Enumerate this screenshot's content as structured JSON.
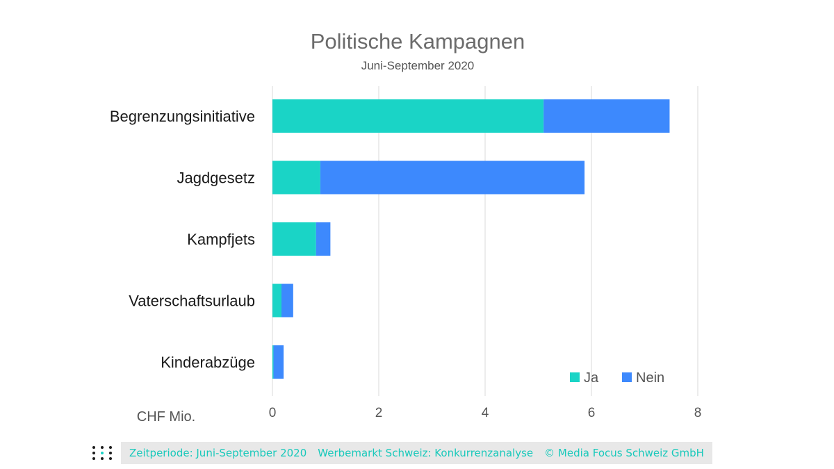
{
  "chart_data": {
    "type": "bar",
    "orientation": "horizontal",
    "stacked": true,
    "title": "Politische Kampagnen",
    "subtitle": "Juni-September 2020",
    "categories": [
      "Begrenzungsinitiative",
      "Jagdgesetz",
      "Kampfjets",
      "Vaterschaftsurlaub",
      "Kinderabzüge"
    ],
    "series": [
      {
        "name": "Ja",
        "color": "#1ad4c6",
        "values": [
          5.1,
          0.9,
          0.82,
          0.17,
          0.02
        ]
      },
      {
        "name": "Nein",
        "color": "#3d89fd",
        "values": [
          2.37,
          4.97,
          0.27,
          0.22,
          0.19
        ]
      }
    ],
    "xlabel": "CHF Mio.",
    "xlim": [
      0,
      8
    ],
    "xticks": [
      "0",
      "2",
      "4",
      "6",
      "8"
    ],
    "grid": true,
    "legend_position": "bottom-right"
  },
  "footer": {
    "period": "Zeitperiode: Juni-September 2020",
    "source": "Werbemarkt Schweiz: Konkurrenzanalyse",
    "copyright": "© Media Focus Schweiz GmbH"
  }
}
